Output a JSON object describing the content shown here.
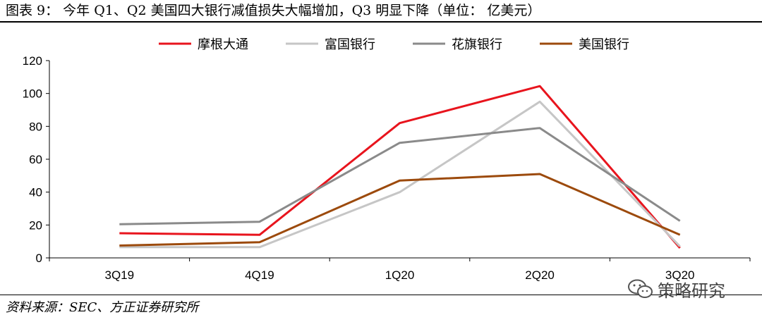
{
  "figure": {
    "title": "图表 9：  今年 Q1、Q2 美国四大银行减值损失大幅增加，Q3 明显下降（单位：  亿美元）",
    "source": "资料来源：SEC、方正证券研究所",
    "watermark": "策略研究",
    "watermark_icon": "wechat-icon"
  },
  "chart_data": {
    "type": "line",
    "title": "图表 9：  今年 Q1、Q2 美国四大银行减值损失大幅增加，Q3 明显下降（单位：  亿美元）",
    "xlabel": "",
    "ylabel": "",
    "categories": [
      "3Q19",
      "4Q19",
      "1Q20",
      "2Q20",
      "3Q20"
    ],
    "ylim": [
      0,
      120
    ],
    "yticks": [
      0,
      20,
      40,
      60,
      80,
      100,
      120
    ],
    "grid": false,
    "legend_position": "top",
    "series": [
      {
        "name": "摩根大通",
        "color": "#e8141d",
        "values": [
          15,
          14,
          82,
          104.5,
          6
        ]
      },
      {
        "name": "富国银行",
        "color": "#c6c6c6",
        "values": [
          6.5,
          6.5,
          40,
          95,
          7
        ]
      },
      {
        "name": "花旗银行",
        "color": "#8a8a8a",
        "values": [
          20.5,
          22,
          70,
          79,
          22.5
        ]
      },
      {
        "name": "美国银行",
        "color": "#9c4a0c",
        "values": [
          7.5,
          9.5,
          47,
          51,
          14
        ]
      }
    ]
  }
}
